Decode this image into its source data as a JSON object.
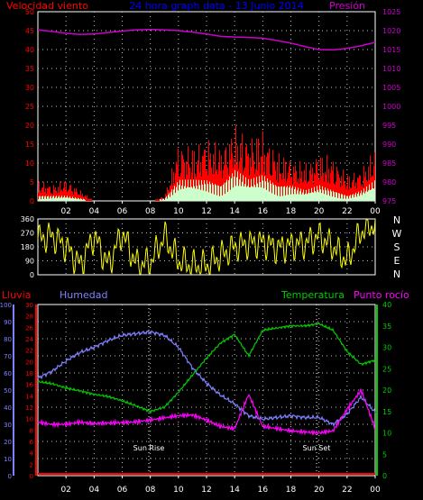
{
  "header": {
    "wind_label": "Velocidad viento",
    "title": "24 hora graph data - 13 Junio 2014",
    "pressure_label": "Presión"
  },
  "legend": {
    "rain": "Lluvia",
    "humidity": "Humedad",
    "temperature": "Temperatura",
    "dewpoint": "Punto rocío"
  },
  "annotations": {
    "sunrise": "Sun Rise",
    "sunset": "Sun Set"
  },
  "colors": {
    "background": "#000000",
    "axis": "#ffffff",
    "grid": "#c0c0c0",
    "wind_gust": "#ff0000",
    "wind_avg": "#ccffcc",
    "wind_inner": "#00cc00",
    "pressure": "#cc00cc",
    "direction": "#ffff00",
    "rain": "#ff0000",
    "humidity": "#8080ff",
    "temperature": "#00cc00",
    "dewpoint": "#ff00ff",
    "title": "#0000ff"
  },
  "chart_data": [
    {
      "type": "area",
      "name": "wind-pressure",
      "x_ticks": [
        "02",
        "04",
        "06",
        "08",
        "10",
        "12",
        "14",
        "16",
        "18",
        "20",
        "22",
        "00"
      ],
      "y_left": {
        "label": "Velocidad viento",
        "range": [
          0,
          50
        ],
        "ticks": [
          "0",
          "5",
          "10",
          "15",
          "20",
          "25",
          "30",
          "35",
          "40",
          "45",
          "50"
        ]
      },
      "y_right": {
        "label": "Presión",
        "range": [
          975,
          1025
        ],
        "ticks": [
          "975",
          "980",
          "985",
          "990",
          "995",
          "1000",
          "1005",
          "1010",
          "1015",
          "1020",
          "1025"
        ]
      },
      "x_hours": [
        0,
        1,
        2,
        3,
        4,
        5,
        6,
        7,
        8,
        9,
        10,
        11,
        12,
        13,
        14,
        15,
        16,
        17,
        18,
        19,
        20,
        21,
        22,
        23,
        24
      ],
      "series": [
        {
          "values": [
            4,
            3,
            4,
            2,
            0,
            0,
            0,
            0,
            0,
            1,
            11,
            10,
            12,
            10,
            14,
            12,
            13,
            9,
            8,
            7,
            9,
            8,
            5,
            6,
            10
          ]
        },
        {
          "values": [
            1,
            1,
            1,
            0.5,
            0,
            0,
            0,
            0,
            0,
            0.5,
            4,
            4,
            4,
            3,
            6,
            4,
            5,
            3,
            3,
            2,
            3,
            2,
            1,
            2,
            4
          ]
        },
        {
          "values": [
            1020.2,
            1019.8,
            1019.3,
            1019.0,
            1019.1,
            1019.5,
            1019.9,
            1020.2,
            1020.3,
            1020.2,
            1020.0,
            1019.6,
            1019.1,
            1018.5,
            1018.3,
            1018.2,
            1018.0,
            1017.4,
            1016.7,
            1015.8,
            1015.0,
            1014.9,
            1015.3,
            1016.0,
            1016.9
          ]
        }
      ],
      "grid": true
    },
    {
      "type": "line",
      "name": "wind-direction",
      "y_range": [
        0,
        360
      ],
      "y_ticks": [
        "0",
        "90",
        "180",
        "270",
        "360"
      ],
      "right_labels": [
        "N",
        "W",
        "S",
        "E",
        "N"
      ],
      "x_hours": [
        0,
        1,
        2,
        3,
        4,
        5,
        6,
        7,
        8,
        9,
        10,
        11,
        12,
        13,
        14,
        15,
        16,
        17,
        18,
        19,
        20,
        21,
        22,
        23,
        24
      ],
      "values": [
        230,
        250,
        180,
        60,
        250,
        60,
        270,
        70,
        80,
        250,
        90,
        60,
        60,
        120,
        180,
        200,
        210,
        170,
        190,
        200,
        250,
        180,
        90,
        280,
        330
      ],
      "grid": true
    },
    {
      "type": "line",
      "name": "humidity-temperature",
      "x_ticks": [
        "02",
        "04",
        "06",
        "08",
        "10",
        "12",
        "14",
        "16",
        "18",
        "20",
        "22",
        "00"
      ],
      "y_humidity": {
        "range": [
          0,
          100
        ],
        "ticks": [
          "0",
          "10",
          "20",
          "30",
          "40",
          "50",
          "60",
          "70",
          "80",
          "90",
          "100"
        ]
      },
      "y_rain": {
        "range": [
          0,
          30
        ],
        "ticks": [
          "0",
          "2",
          "4",
          "6",
          "8",
          "10",
          "12",
          "14",
          "16",
          "18",
          "20",
          "22",
          "24",
          "26",
          "28",
          "30"
        ]
      },
      "y_temperature": {
        "range": [
          0,
          40
        ],
        "ticks": [
          "0",
          "5",
          "10",
          "15",
          "20",
          "25",
          "30",
          "35",
          "40"
        ]
      },
      "x_hours": [
        0,
        1,
        2,
        3,
        4,
        5,
        6,
        7,
        8,
        9,
        10,
        11,
        12,
        13,
        14,
        15,
        16,
        17,
        18,
        19,
        20,
        21,
        22,
        23,
        24
      ],
      "series": [
        {
          "values": [
            57,
            61,
            67,
            72,
            75,
            79,
            82,
            83,
            84,
            82,
            75,
            63,
            54,
            47,
            42,
            35,
            33,
            34,
            35,
            34,
            34,
            30,
            36,
            46,
            37
          ]
        },
        {
          "values": [
            22,
            21.5,
            20.5,
            19.8,
            19.0,
            18.5,
            17.5,
            16.3,
            15.0,
            16.0,
            19.5,
            23.5,
            27.5,
            31,
            33,
            28,
            34,
            34.5,
            35,
            35,
            35.5,
            34,
            29,
            26,
            27
          ]
        },
        {
          "values": [
            12.5,
            12.0,
            12.0,
            12.5,
            12.2,
            12.3,
            12.4,
            12.6,
            13.0,
            13.5,
            14.0,
            14.2,
            13.0,
            11.5,
            11.0,
            19.0,
            11.5,
            11.0,
            10.5,
            10.2,
            10.0,
            10.5,
            15.5,
            20.0,
            11.0
          ]
        },
        {
          "values": [
            0,
            0,
            0,
            0,
            0,
            0,
            0,
            0,
            0,
            0,
            0,
            0,
            0,
            0,
            0,
            0,
            0,
            0,
            0,
            0,
            0,
            0,
            0,
            0,
            0
          ]
        }
      ],
      "grid": true
    }
  ]
}
